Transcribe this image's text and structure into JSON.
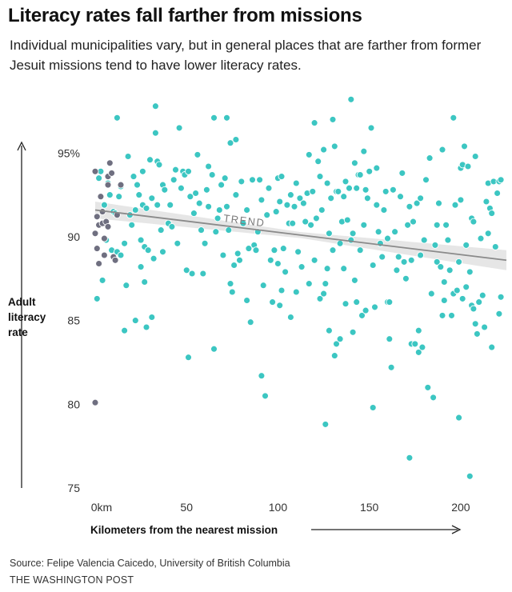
{
  "header": {
    "title": "Literacy rates fall farther from missions",
    "subtitle": "Individual municipalities vary, but in general places that are farther from former Jesuit missions tend to have lower literacy rates."
  },
  "footer": {
    "source": "Source: Felipe Valencia Caicedo, University of British Columbia",
    "credit": "THE WASHINGTON POST"
  },
  "chart_data": {
    "type": "scatter",
    "title": "Literacy rates fall farther from missions",
    "xlabel": "Kilometers from the nearest mission",
    "ylabel_lines": [
      "Adult",
      "literacy",
      "rate"
    ],
    "xlim": [
      0,
      225
    ],
    "ylim": [
      75,
      98.5
    ],
    "x_ticks": [
      {
        "value": 0,
        "label": "0km"
      },
      {
        "value": 50,
        "label": "50"
      },
      {
        "value": 100,
        "label": "100"
      },
      {
        "value": 150,
        "label": "150"
      },
      {
        "value": 200,
        "label": "200"
      }
    ],
    "y_ticks": [
      {
        "value": 95,
        "label": "95%"
      },
      {
        "value": 90,
        "label": "90"
      },
      {
        "value": 85,
        "label": "85"
      },
      {
        "value": 80,
        "label": "80"
      },
      {
        "value": 75,
        "label": "75"
      }
    ],
    "grid": false,
    "colors": {
      "points": "#3cc6c2",
      "points_stroke": "#ffffff",
      "mission_points": "#6f6f80",
      "trend_line": "#8a8a8a",
      "trend_band": "#e6e6e6"
    },
    "trend": {
      "label": "TREND",
      "start": [
        0,
        91.6
      ],
      "end": [
        225,
        88.6
      ],
      "band_halfwidth_start": 0.5,
      "band_halfwidth_mid": 0.18,
      "band_halfwidth_end": 0.6
    },
    "series": [
      {
        "points": [
          [
            0,
            93.9
          ],
          [
            0,
            80.1
          ],
          [
            0,
            90.2
          ],
          [
            1,
            91.2
          ],
          [
            1,
            89.3
          ],
          [
            2,
            90.7
          ],
          [
            2,
            88.4
          ],
          [
            3,
            92.4
          ],
          [
            4,
            90.8
          ],
          [
            4,
            91.5
          ],
          [
            5,
            89.9
          ],
          [
            5,
            88.9
          ],
          [
            6,
            90.9
          ],
          [
            7,
            93.1
          ],
          [
            7,
            93.6
          ],
          [
            7,
            90.6
          ],
          [
            8,
            94.4
          ],
          [
            9,
            93.8
          ],
          [
            10,
            88.8
          ],
          [
            11,
            88.6
          ],
          [
            12,
            91.3
          ],
          [
            14,
            93.1
          ]
        ]
      },
      {
        "points": [
          [
            1,
            86.3
          ],
          [
            2,
            93.5
          ],
          [
            3,
            93.9
          ],
          [
            4,
            87.4
          ],
          [
            5,
            91.9
          ],
          [
            6,
            89.8
          ],
          [
            7,
            93.2
          ],
          [
            8,
            92.5
          ],
          [
            9,
            89.2
          ],
          [
            10,
            91.5
          ],
          [
            11,
            91.4
          ],
          [
            12,
            89.1
          ],
          [
            12,
            97.1
          ],
          [
            13,
            92.4
          ],
          [
            14,
            93.0
          ],
          [
            14,
            88.9
          ],
          [
            16,
            89.6
          ],
          [
            16,
            84.4
          ],
          [
            17,
            87.1
          ],
          [
            18,
            94.8
          ],
          [
            19,
            91.3
          ],
          [
            20,
            90.7
          ],
          [
            21,
            93.6
          ],
          [
            22,
            91.6
          ],
          [
            22,
            85.0
          ],
          [
            23,
            93.1
          ],
          [
            24,
            92.5
          ],
          [
            25,
            89.8
          ],
          [
            25,
            88.2
          ],
          [
            26,
            91.9
          ],
          [
            26,
            93.9
          ],
          [
            27,
            87.3
          ],
          [
            27,
            89.4
          ],
          [
            28,
            91.7
          ],
          [
            28,
            84.6
          ],
          [
            29,
            89.2
          ],
          [
            30,
            94.6
          ],
          [
            31,
            92.3
          ],
          [
            31,
            85.2
          ],
          [
            32,
            88.7
          ],
          [
            33,
            96.2
          ],
          [
            33,
            97.8
          ],
          [
            34,
            91.9
          ],
          [
            34,
            94.5
          ],
          [
            35,
            94.3
          ],
          [
            36,
            90.4
          ],
          [
            37,
            89.1
          ],
          [
            37,
            93.1
          ],
          [
            38,
            92.8
          ],
          [
            40,
            90.8
          ],
          [
            41,
            91.9
          ],
          [
            42,
            90.6
          ],
          [
            43,
            93.4
          ],
          [
            44,
            94.0
          ],
          [
            45,
            89.6
          ],
          [
            46,
            96.5
          ],
          [
            47,
            92.9
          ],
          [
            48,
            93.9
          ],
          [
            49,
            93.7
          ],
          [
            50,
            88.0
          ],
          [
            51,
            93.9
          ],
          [
            51,
            82.8
          ],
          [
            52,
            92.4
          ],
          [
            53,
            87.8
          ],
          [
            54,
            91.4
          ],
          [
            55,
            92.6
          ],
          [
            56,
            94.9
          ],
          [
            57,
            92.0
          ],
          [
            58,
            90.4
          ],
          [
            59,
            87.8
          ],
          [
            60,
            89.6
          ],
          [
            61,
            92.8
          ],
          [
            62,
            94.2
          ],
          [
            62,
            91.8
          ],
          [
            64,
            93.7
          ],
          [
            65,
            83.3
          ],
          [
            65,
            97.1
          ],
          [
            66,
            90.3
          ],
          [
            67,
            91.1
          ],
          [
            68,
            91.6
          ],
          [
            69,
            93.1
          ],
          [
            70,
            88.9
          ],
          [
            71,
            93.5
          ],
          [
            72,
            97.1
          ],
          [
            72,
            91.8
          ],
          [
            73,
            90.4
          ],
          [
            74,
            87.2
          ],
          [
            74,
            95.6
          ],
          [
            75,
            86.7
          ],
          [
            76,
            88.3
          ],
          [
            77,
            92.5
          ],
          [
            77,
            95.8
          ],
          [
            78,
            89.0
          ],
          [
            79,
            88.6
          ],
          [
            80,
            93.3
          ],
          [
            81,
            90.8
          ],
          [
            83,
            91.6
          ],
          [
            83,
            86.2
          ],
          [
            84,
            89.3
          ],
          [
            85,
            84.9
          ],
          [
            86,
            93.4
          ],
          [
            87,
            89.5
          ],
          [
            88,
            89.2
          ],
          [
            89,
            90.3
          ],
          [
            90,
            93.4
          ],
          [
            91,
            92.2
          ],
          [
            91,
            81.7
          ],
          [
            92,
            87.1
          ],
          [
            93,
            80.5
          ],
          [
            94,
            91.3
          ],
          [
            95,
            92.9
          ],
          [
            96,
            88.6
          ],
          [
            97,
            86.1
          ],
          [
            98,
            89.2
          ],
          [
            99,
            91.5
          ],
          [
            100,
            93.5
          ],
          [
            100,
            88.4
          ],
          [
            101,
            92.1
          ],
          [
            101,
            85.9
          ],
          [
            102,
            86.8
          ],
          [
            102,
            93.6
          ],
          [
            103,
            89.3
          ],
          [
            104,
            87.9
          ],
          [
            105,
            91.9
          ],
          [
            106,
            90.8
          ],
          [
            107,
            85.2
          ],
          [
            107,
            92.5
          ],
          [
            108,
            90.8
          ],
          [
            109,
            91.8
          ],
          [
            110,
            86.7
          ],
          [
            110,
            93.2
          ],
          [
            111,
            89.1
          ],
          [
            112,
            92.3
          ],
          [
            113,
            88.2
          ],
          [
            114,
            92.0
          ],
          [
            115,
            90.9
          ],
          [
            116,
            92.6
          ],
          [
            117,
            94.9
          ],
          [
            117,
            87.2
          ],
          [
            118,
            90.7
          ],
          [
            119,
            92.7
          ],
          [
            120,
            96.8
          ],
          [
            120,
            88.6
          ],
          [
            121,
            91.1
          ],
          [
            122,
            94.5
          ],
          [
            123,
            86.3
          ],
          [
            123,
            93.6
          ],
          [
            124,
            91.6
          ],
          [
            125,
            86.6
          ],
          [
            125,
            95.2
          ],
          [
            126,
            78.8
          ],
          [
            126,
            87.2
          ],
          [
            127,
            88.1
          ],
          [
            127,
            93.2
          ],
          [
            128,
            90.2
          ],
          [
            128,
            84.4
          ],
          [
            129,
            92.3
          ],
          [
            130,
            97.0
          ],
          [
            130,
            89.2
          ],
          [
            131,
            95.4
          ],
          [
            131,
            82.9
          ],
          [
            132,
            92.7
          ],
          [
            132,
            83.6
          ],
          [
            133,
            92.7
          ],
          [
            134,
            83.9
          ],
          [
            134,
            89.6
          ],
          [
            135,
            90.9
          ],
          [
            136,
            92.4
          ],
          [
            136,
            88.1
          ],
          [
            137,
            93.3
          ],
          [
            137,
            86.0
          ],
          [
            138,
            91.0
          ],
          [
            139,
            92.9
          ],
          [
            140,
            89.8
          ],
          [
            140,
            98.2
          ],
          [
            141,
            90.2
          ],
          [
            141,
            84.3
          ],
          [
            142,
            94.4
          ],
          [
            142,
            87.4
          ],
          [
            143,
            86.1
          ],
          [
            143,
            92.9
          ],
          [
            144,
            93.7
          ],
          [
            145,
            93.7
          ],
          [
            145,
            89.2
          ],
          [
            146,
            85.3
          ],
          [
            147,
            95.1
          ],
          [
            147,
            90.7
          ],
          [
            148,
            92.8
          ],
          [
            148,
            85.6
          ],
          [
            149,
            92.3
          ],
          [
            150,
            93.9
          ],
          [
            151,
            96.5
          ],
          [
            152,
            88.3
          ],
          [
            152,
            79.8
          ],
          [
            153,
            85.8
          ],
          [
            154,
            91.9
          ],
          [
            154,
            94.1
          ],
          [
            155,
            90.3
          ],
          [
            156,
            89.6
          ],
          [
            157,
            88.8
          ],
          [
            158,
            91.6
          ],
          [
            159,
            92.7
          ],
          [
            160,
            86.1
          ],
          [
            160,
            89.9
          ],
          [
            161,
            86.1
          ],
          [
            161,
            83.9
          ],
          [
            162,
            82.2
          ],
          [
            163,
            92.8
          ],
          [
            164,
            90.3
          ],
          [
            165,
            88.0
          ],
          [
            166,
            88.8
          ],
          [
            167,
            92.4
          ],
          [
            168,
            93.8
          ],
          [
            169,
            88.5
          ],
          [
            170,
            87.5
          ],
          [
            171,
            90.7
          ],
          [
            172,
            91.8
          ],
          [
            172,
            76.8
          ],
          [
            173,
            88.6
          ],
          [
            173,
            83.6
          ],
          [
            174,
            90.9
          ],
          [
            175,
            83.6
          ],
          [
            176,
            92.0
          ],
          [
            177,
            84.4
          ],
          [
            177,
            83.1
          ],
          [
            178,
            88.9
          ],
          [
            178,
            92.3
          ],
          [
            179,
            83.4
          ],
          [
            180,
            89.8
          ],
          [
            181,
            93.4
          ],
          [
            182,
            81.0
          ],
          [
            183,
            94.7
          ],
          [
            184,
            86.6
          ],
          [
            185,
            80.4
          ],
          [
            186,
            89.5
          ],
          [
            187,
            90.7
          ],
          [
            187,
            88.5
          ],
          [
            188,
            92.0
          ],
          [
            189,
            88.2
          ],
          [
            190,
            85.3
          ],
          [
            190,
            95.2
          ],
          [
            191,
            86.2
          ],
          [
            191,
            87.3
          ],
          [
            192,
            90.7
          ],
          [
            193,
            89.8
          ],
          [
            194,
            88.0
          ],
          [
            195,
            85.3
          ],
          [
            196,
            86.6
          ],
          [
            196,
            97.1
          ],
          [
            197,
            91.9
          ],
          [
            198,
            86.8
          ],
          [
            199,
            88.5
          ],
          [
            199,
            79.2
          ],
          [
            200,
            92.2
          ],
          [
            200,
            94.1
          ],
          [
            201,
            86.3
          ],
          [
            201,
            94.3
          ],
          [
            202,
            95.4
          ],
          [
            203,
            89.5
          ],
          [
            203,
            87.0
          ],
          [
            204,
            94.2
          ],
          [
            205,
            87.9
          ],
          [
            205,
            75.7
          ],
          [
            206,
            85.9
          ],
          [
            206,
            91.1
          ],
          [
            207,
            85.7
          ],
          [
            207,
            90.9
          ],
          [
            208,
            94.8
          ],
          [
            208,
            84.8
          ],
          [
            209,
            84.2
          ],
          [
            210,
            86.1
          ],
          [
            211,
            89.9
          ],
          [
            212,
            86.5
          ],
          [
            213,
            84.6
          ],
          [
            214,
            92.1
          ],
          [
            215,
            93.2
          ],
          [
            215,
            90.2
          ],
          [
            216,
            91.7
          ],
          [
            217,
            91.4
          ],
          [
            217,
            83.4
          ],
          [
            218,
            93.3
          ],
          [
            219,
            89.4
          ],
          [
            220,
            92.6
          ],
          [
            221,
            85.4
          ],
          [
            221,
            93.3
          ],
          [
            222,
            93.4
          ],
          [
            222,
            86.4
          ]
        ]
      }
    ]
  }
}
